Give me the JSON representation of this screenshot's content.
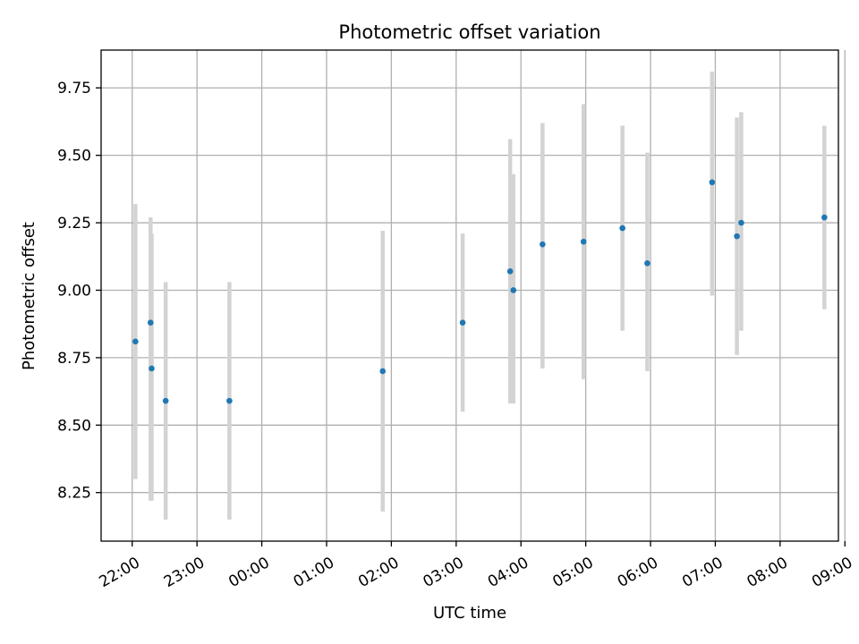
{
  "chart_data": {
    "type": "scatter",
    "title": "Photometric offset variation",
    "xlabel": "UTC time",
    "ylabel": "Photometric offset",
    "x_ticks": [
      "22:00",
      "23:00",
      "00:00",
      "01:00",
      "02:00",
      "03:00",
      "04:00",
      "05:00",
      "06:00",
      "07:00",
      "08:00",
      "09:00"
    ],
    "y_ticks": [
      "8.25",
      "8.50",
      "8.75",
      "9.00",
      "9.25",
      "9.50",
      "9.75"
    ],
    "xlim_hours_from_22": [
      -0.48,
      10.9
    ],
    "ylim": [
      8.07,
      9.89
    ],
    "grid": true,
    "marker_color": "#1f77b4",
    "errorbar_color": "#d3d3d3",
    "points": [
      {
        "time": "22:03",
        "y": 8.81,
        "err_low": 8.3,
        "err_high": 9.32
      },
      {
        "time": "22:17",
        "y": 8.88,
        "err_low": 8.22,
        "err_high": 9.27
      },
      {
        "time": "22:18",
        "y": 8.71,
        "err_low": 8.22,
        "err_high": 9.21
      },
      {
        "time": "22:31",
        "y": 8.59,
        "err_low": 8.15,
        "err_high": 9.03
      },
      {
        "time": "23:30",
        "y": 8.59,
        "err_low": 8.15,
        "err_high": 9.03
      },
      {
        "time": "01:52",
        "y": 8.7,
        "err_low": 8.18,
        "err_high": 9.22
      },
      {
        "time": "03:06",
        "y": 8.88,
        "err_low": 8.55,
        "err_high": 9.21
      },
      {
        "time": "03:50",
        "y": 9.07,
        "err_low": 8.58,
        "err_high": 9.56
      },
      {
        "time": "03:53",
        "y": 9.0,
        "err_low": 8.58,
        "err_high": 9.43
      },
      {
        "time": "04:20",
        "y": 9.17,
        "err_low": 8.71,
        "err_high": 9.62
      },
      {
        "time": "04:58",
        "y": 9.18,
        "err_low": 8.67,
        "err_high": 9.69
      },
      {
        "time": "05:34",
        "y": 9.23,
        "err_low": 8.85,
        "err_high": 9.61
      },
      {
        "time": "05:57",
        "y": 9.1,
        "err_low": 8.7,
        "err_high": 9.51
      },
      {
        "time": "06:57",
        "y": 9.4,
        "err_low": 8.98,
        "err_high": 9.81
      },
      {
        "time": "07:20",
        "y": 9.2,
        "err_low": 8.76,
        "err_high": 9.64
      },
      {
        "time": "07:24",
        "y": 9.25,
        "err_low": 8.85,
        "err_high": 9.66
      },
      {
        "time": "08:41",
        "y": 9.27,
        "err_low": 8.93,
        "err_high": 9.61
      }
    ]
  }
}
